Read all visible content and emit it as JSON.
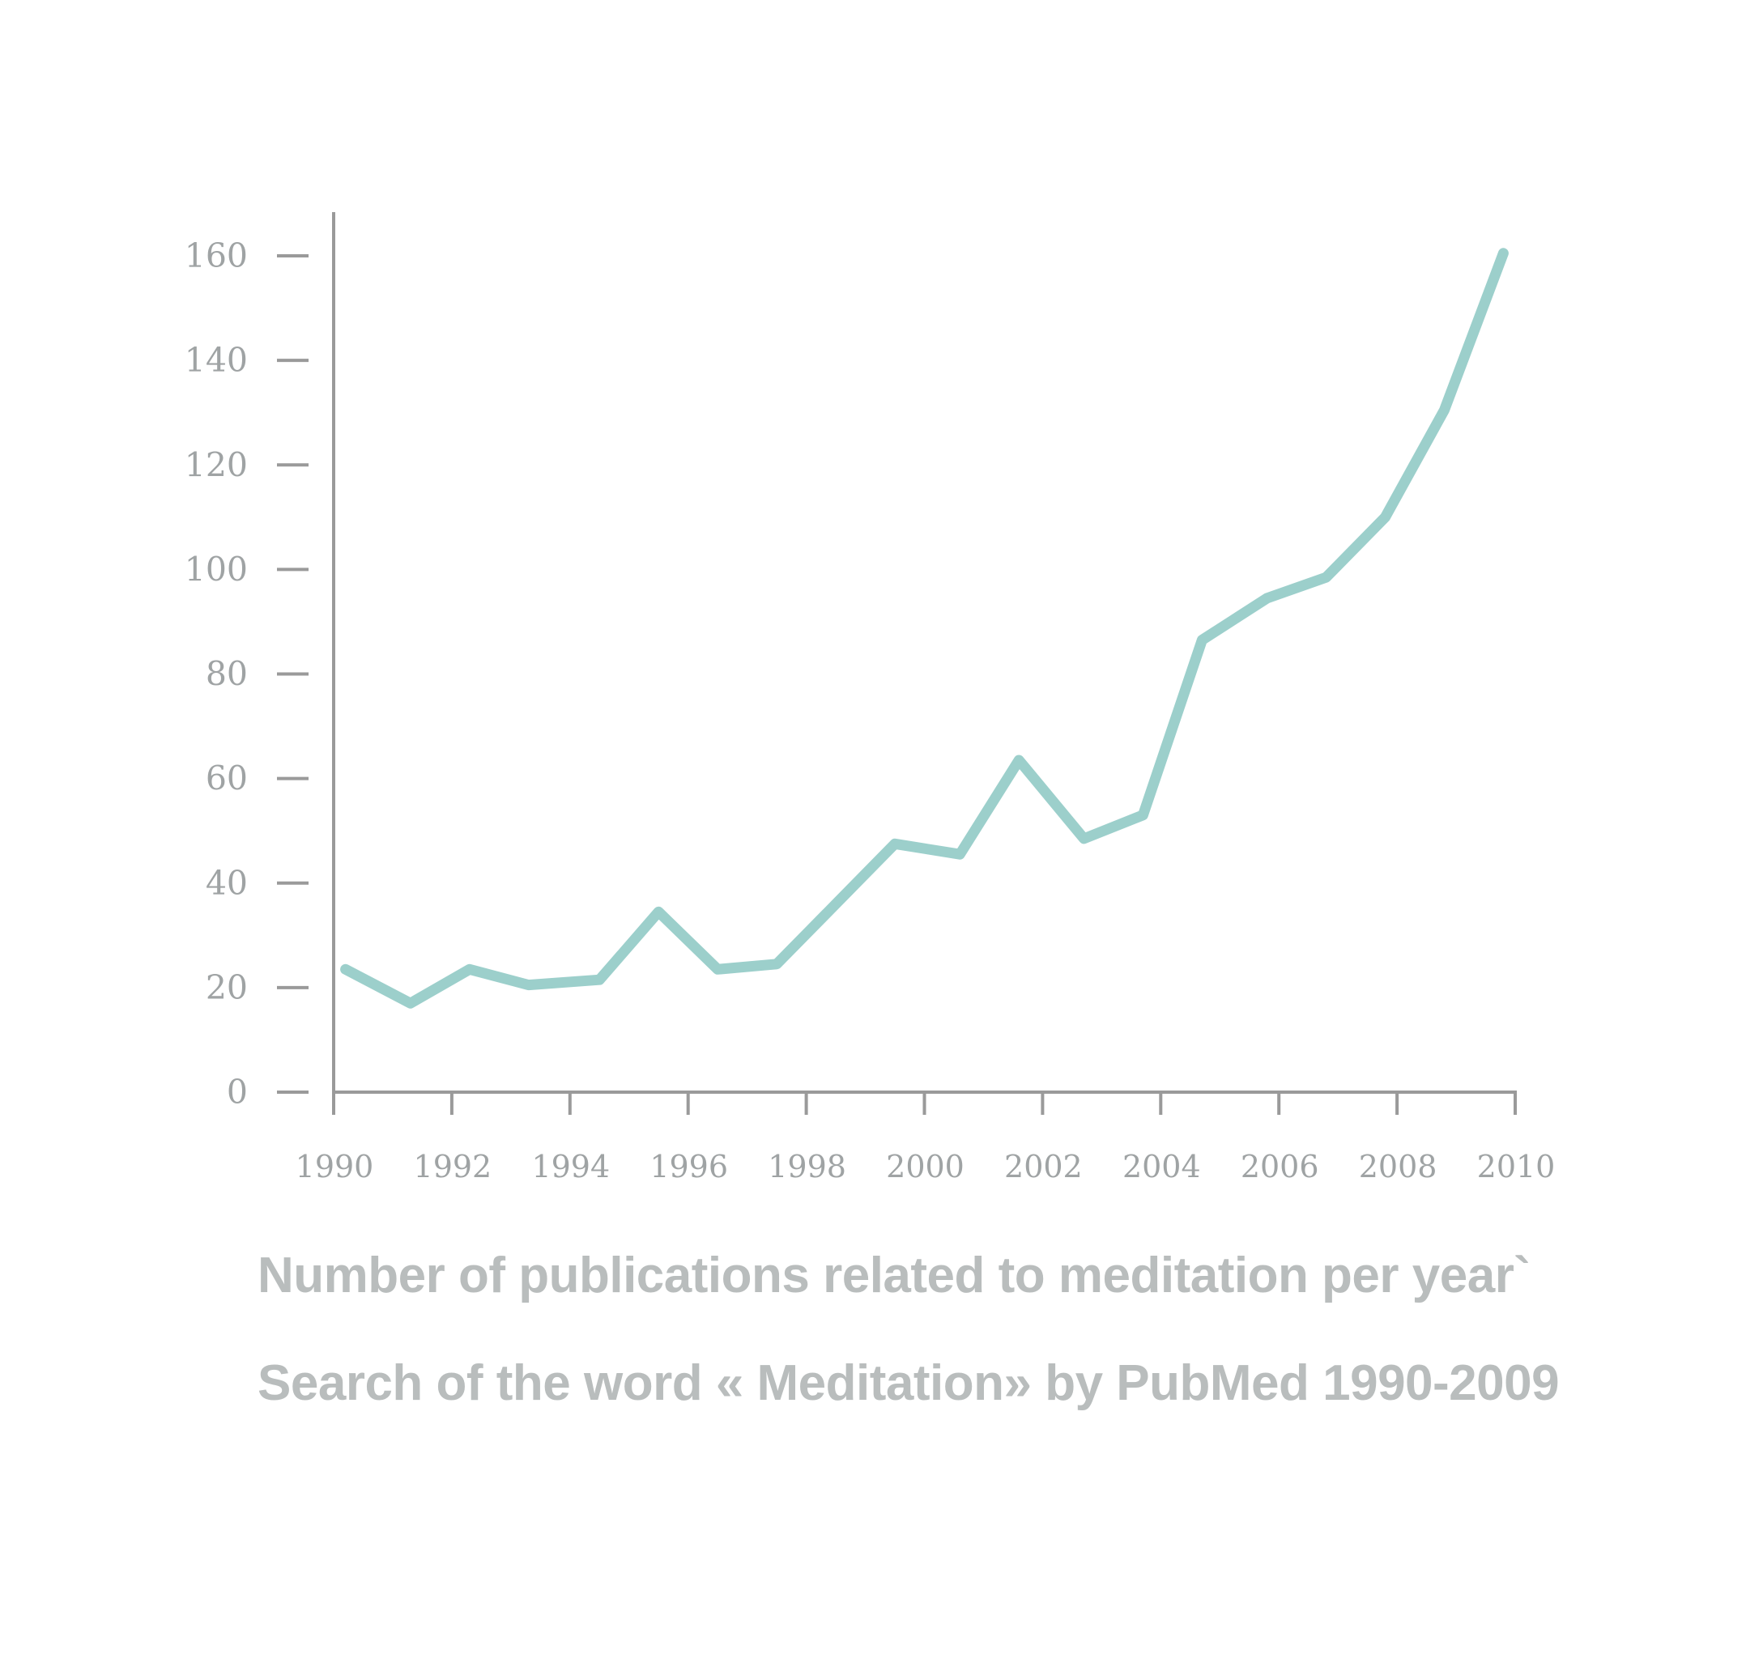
{
  "chart_data": {
    "type": "line",
    "title": "Number of publications related to meditation per year`",
    "subtitle": "Search of the word « Meditation» by PubMed 1990-2009",
    "xlabel": "",
    "ylabel": "",
    "x_tick_labels": [
      "1990",
      "1992",
      "1994",
      "1996",
      "1998",
      "2000",
      "2002",
      "2004",
      "2006",
      "2008",
      "2010"
    ],
    "y_tick_labels": [
      "0",
      "20",
      "40",
      "60",
      "80",
      "100",
      "120",
      "140",
      "160"
    ],
    "xlim": [
      1990,
      2010
    ],
    "ylim": [
      0,
      160
    ],
    "grid": false,
    "legend": "none",
    "line_color": "#9ccfcb",
    "axis_color": "#9a9a9a",
    "series": [
      {
        "x": [
          1990.2,
          1991.3,
          1992.3,
          1993.3,
          1994.5,
          1995.5,
          1996.5,
          1997.5,
          1998.5,
          1999.5,
          2000.6,
          2001.6,
          2002.7,
          2003.7,
          2004.7,
          2005.8,
          2006.8,
          2007.8,
          2008.8,
          2009.8
        ],
        "y": [
          23.5,
          17,
          23.5,
          20.5,
          21.5,
          34.5,
          23.5,
          24.5,
          36,
          47.5,
          45.5,
          63.5,
          48.5,
          53,
          86.5,
          94.5,
          98.5,
          110,
          130.5,
          160.5
        ]
      }
    ]
  }
}
